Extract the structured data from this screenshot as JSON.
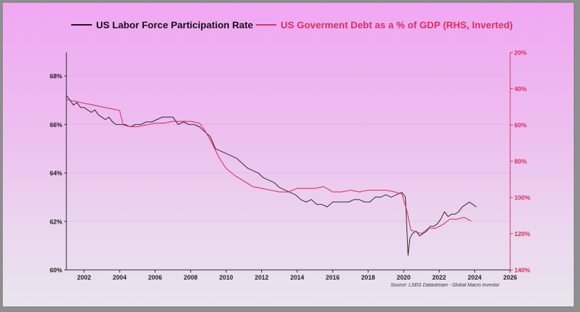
{
  "legend": {
    "lfp_label": "US Labor Force Participation Rate",
    "debt_label": "US Goverment Debt as a % of GDP (RHS, Inverted)"
  },
  "source": "Source: LSEG Datastream - Global Macro Investor",
  "colors": {
    "lfp": "#111111",
    "debt": "#d82f5c",
    "grid": "#999999"
  },
  "chart_data": {
    "type": "line",
    "title": "",
    "xlabel": "",
    "ylabel_left": "",
    "ylabel_right": "",
    "xlim": [
      2001,
      2026
    ],
    "xticks": [
      2002,
      2004,
      2006,
      2008,
      2010,
      2012,
      2014,
      2016,
      2018,
      2020,
      2022,
      2024,
      2026
    ],
    "xtick_labels": [
      "2002",
      "2004",
      "2006",
      "2008",
      "2010",
      "2012",
      "2014",
      "2016",
      "2018",
      "2020",
      "2022",
      "2024",
      "2026"
    ],
    "ylim_left": [
      60,
      69
    ],
    "yticks_left": [
      60,
      62,
      64,
      66,
      68
    ],
    "ytick_labels_left": [
      "60%",
      "62%",
      "64%",
      "66%",
      "68%"
    ],
    "ylim_right": [
      140,
      20
    ],
    "right_inverted": true,
    "yticks_right": [
      20,
      40,
      60,
      80,
      100,
      120,
      140
    ],
    "ytick_labels_right": [
      "20%",
      "40%",
      "60%",
      "80%",
      "100%",
      "120%",
      "140%"
    ],
    "series": [
      {
        "name": "US Labor Force Participation Rate",
        "axis": "left",
        "color": "#111111",
        "x": [
          2001.0,
          2001.2,
          2001.4,
          2001.6,
          2001.8,
          2002.0,
          2002.2,
          2002.4,
          2002.6,
          2002.8,
          2003.0,
          2003.2,
          2003.4,
          2003.6,
          2003.8,
          2004.0,
          2004.3,
          2004.6,
          2004.9,
          2005.2,
          2005.5,
          2005.8,
          2006.1,
          2006.4,
          2006.7,
          2007.0,
          2007.3,
          2007.6,
          2007.9,
          2008.2,
          2008.5,
          2008.8,
          2009.1,
          2009.4,
          2009.7,
          2010.0,
          2010.3,
          2010.6,
          2010.9,
          2011.2,
          2011.5,
          2011.8,
          2012.1,
          2012.4,
          2012.7,
          2013.0,
          2013.3,
          2013.6,
          2013.9,
          2014.2,
          2014.5,
          2014.8,
          2015.1,
          2015.4,
          2015.7,
          2016.0,
          2016.3,
          2016.6,
          2016.9,
          2017.2,
          2017.5,
          2017.8,
          2018.1,
          2018.4,
          2018.7,
          2019.0,
          2019.3,
          2019.6,
          2019.9,
          2020.1,
          2020.25,
          2020.35,
          2020.5,
          2020.7,
          2020.9,
          2021.1,
          2021.3,
          2021.5,
          2021.7,
          2021.9,
          2022.1,
          2022.3,
          2022.5,
          2022.7,
          2022.9,
          2023.1,
          2023.3,
          2023.5,
          2023.7,
          2023.9,
          2024.1
        ],
        "values": [
          67.2,
          67.0,
          66.8,
          66.9,
          66.7,
          66.7,
          66.6,
          66.5,
          66.6,
          66.4,
          66.3,
          66.2,
          66.3,
          66.1,
          66.0,
          66.0,
          66.0,
          65.9,
          66.0,
          66.0,
          66.1,
          66.1,
          66.2,
          66.3,
          66.3,
          66.3,
          66.0,
          66.1,
          66.0,
          66.0,
          65.9,
          65.7,
          65.5,
          65.0,
          64.9,
          64.8,
          64.7,
          64.6,
          64.4,
          64.2,
          64.1,
          64.0,
          63.8,
          63.7,
          63.6,
          63.4,
          63.3,
          63.2,
          63.1,
          62.9,
          62.8,
          62.9,
          62.7,
          62.7,
          62.6,
          62.8,
          62.8,
          62.8,
          62.8,
          62.9,
          62.9,
          62.8,
          62.8,
          63.0,
          63.0,
          63.1,
          63.0,
          63.1,
          63.2,
          63.0,
          60.6,
          61.3,
          61.5,
          61.6,
          61.4,
          61.5,
          61.6,
          61.8,
          61.8,
          61.9,
          62.1,
          62.4,
          62.2,
          62.3,
          62.3,
          62.4,
          62.6,
          62.7,
          62.8,
          62.7,
          62.6
        ]
      },
      {
        "name": "US Goverment Debt as a % of GDP (RHS, Inverted)",
        "axis": "right",
        "color": "#d82f5c",
        "x": [
          2001.0,
          2001.5,
          2002.0,
          2002.5,
          2003.0,
          2003.5,
          2004.0,
          2004.2,
          2004.6,
          2005.0,
          2005.5,
          2006.0,
          2006.5,
          2007.0,
          2007.5,
          2008.0,
          2008.5,
          2008.8,
          2009.2,
          2009.6,
          2010.0,
          2010.5,
          2011.0,
          2011.5,
          2012.0,
          2012.5,
          2013.0,
          2013.5,
          2014.0,
          2014.5,
          2015.0,
          2015.5,
          2016.0,
          2016.5,
          2017.0,
          2017.5,
          2018.0,
          2018.5,
          2019.0,
          2019.5,
          2019.9,
          2020.2,
          2020.4,
          2020.7,
          2021.0,
          2021.4,
          2021.8,
          2022.2,
          2022.6,
          2023.0,
          2023.4,
          2023.8
        ],
        "values": [
          46,
          47,
          48,
          49,
          50,
          51,
          52,
          60,
          61,
          61,
          60,
          59,
          59,
          58,
          58,
          58,
          59,
          63,
          70,
          78,
          84,
          88,
          91,
          94,
          95,
          96,
          97,
          97,
          95,
          95,
          95,
          94,
          97,
          97,
          96,
          97,
          96,
          96,
          96,
          97,
          98,
          108,
          118,
          119,
          120,
          117,
          117,
          115,
          112,
          112,
          111,
          113
        ]
      }
    ]
  }
}
